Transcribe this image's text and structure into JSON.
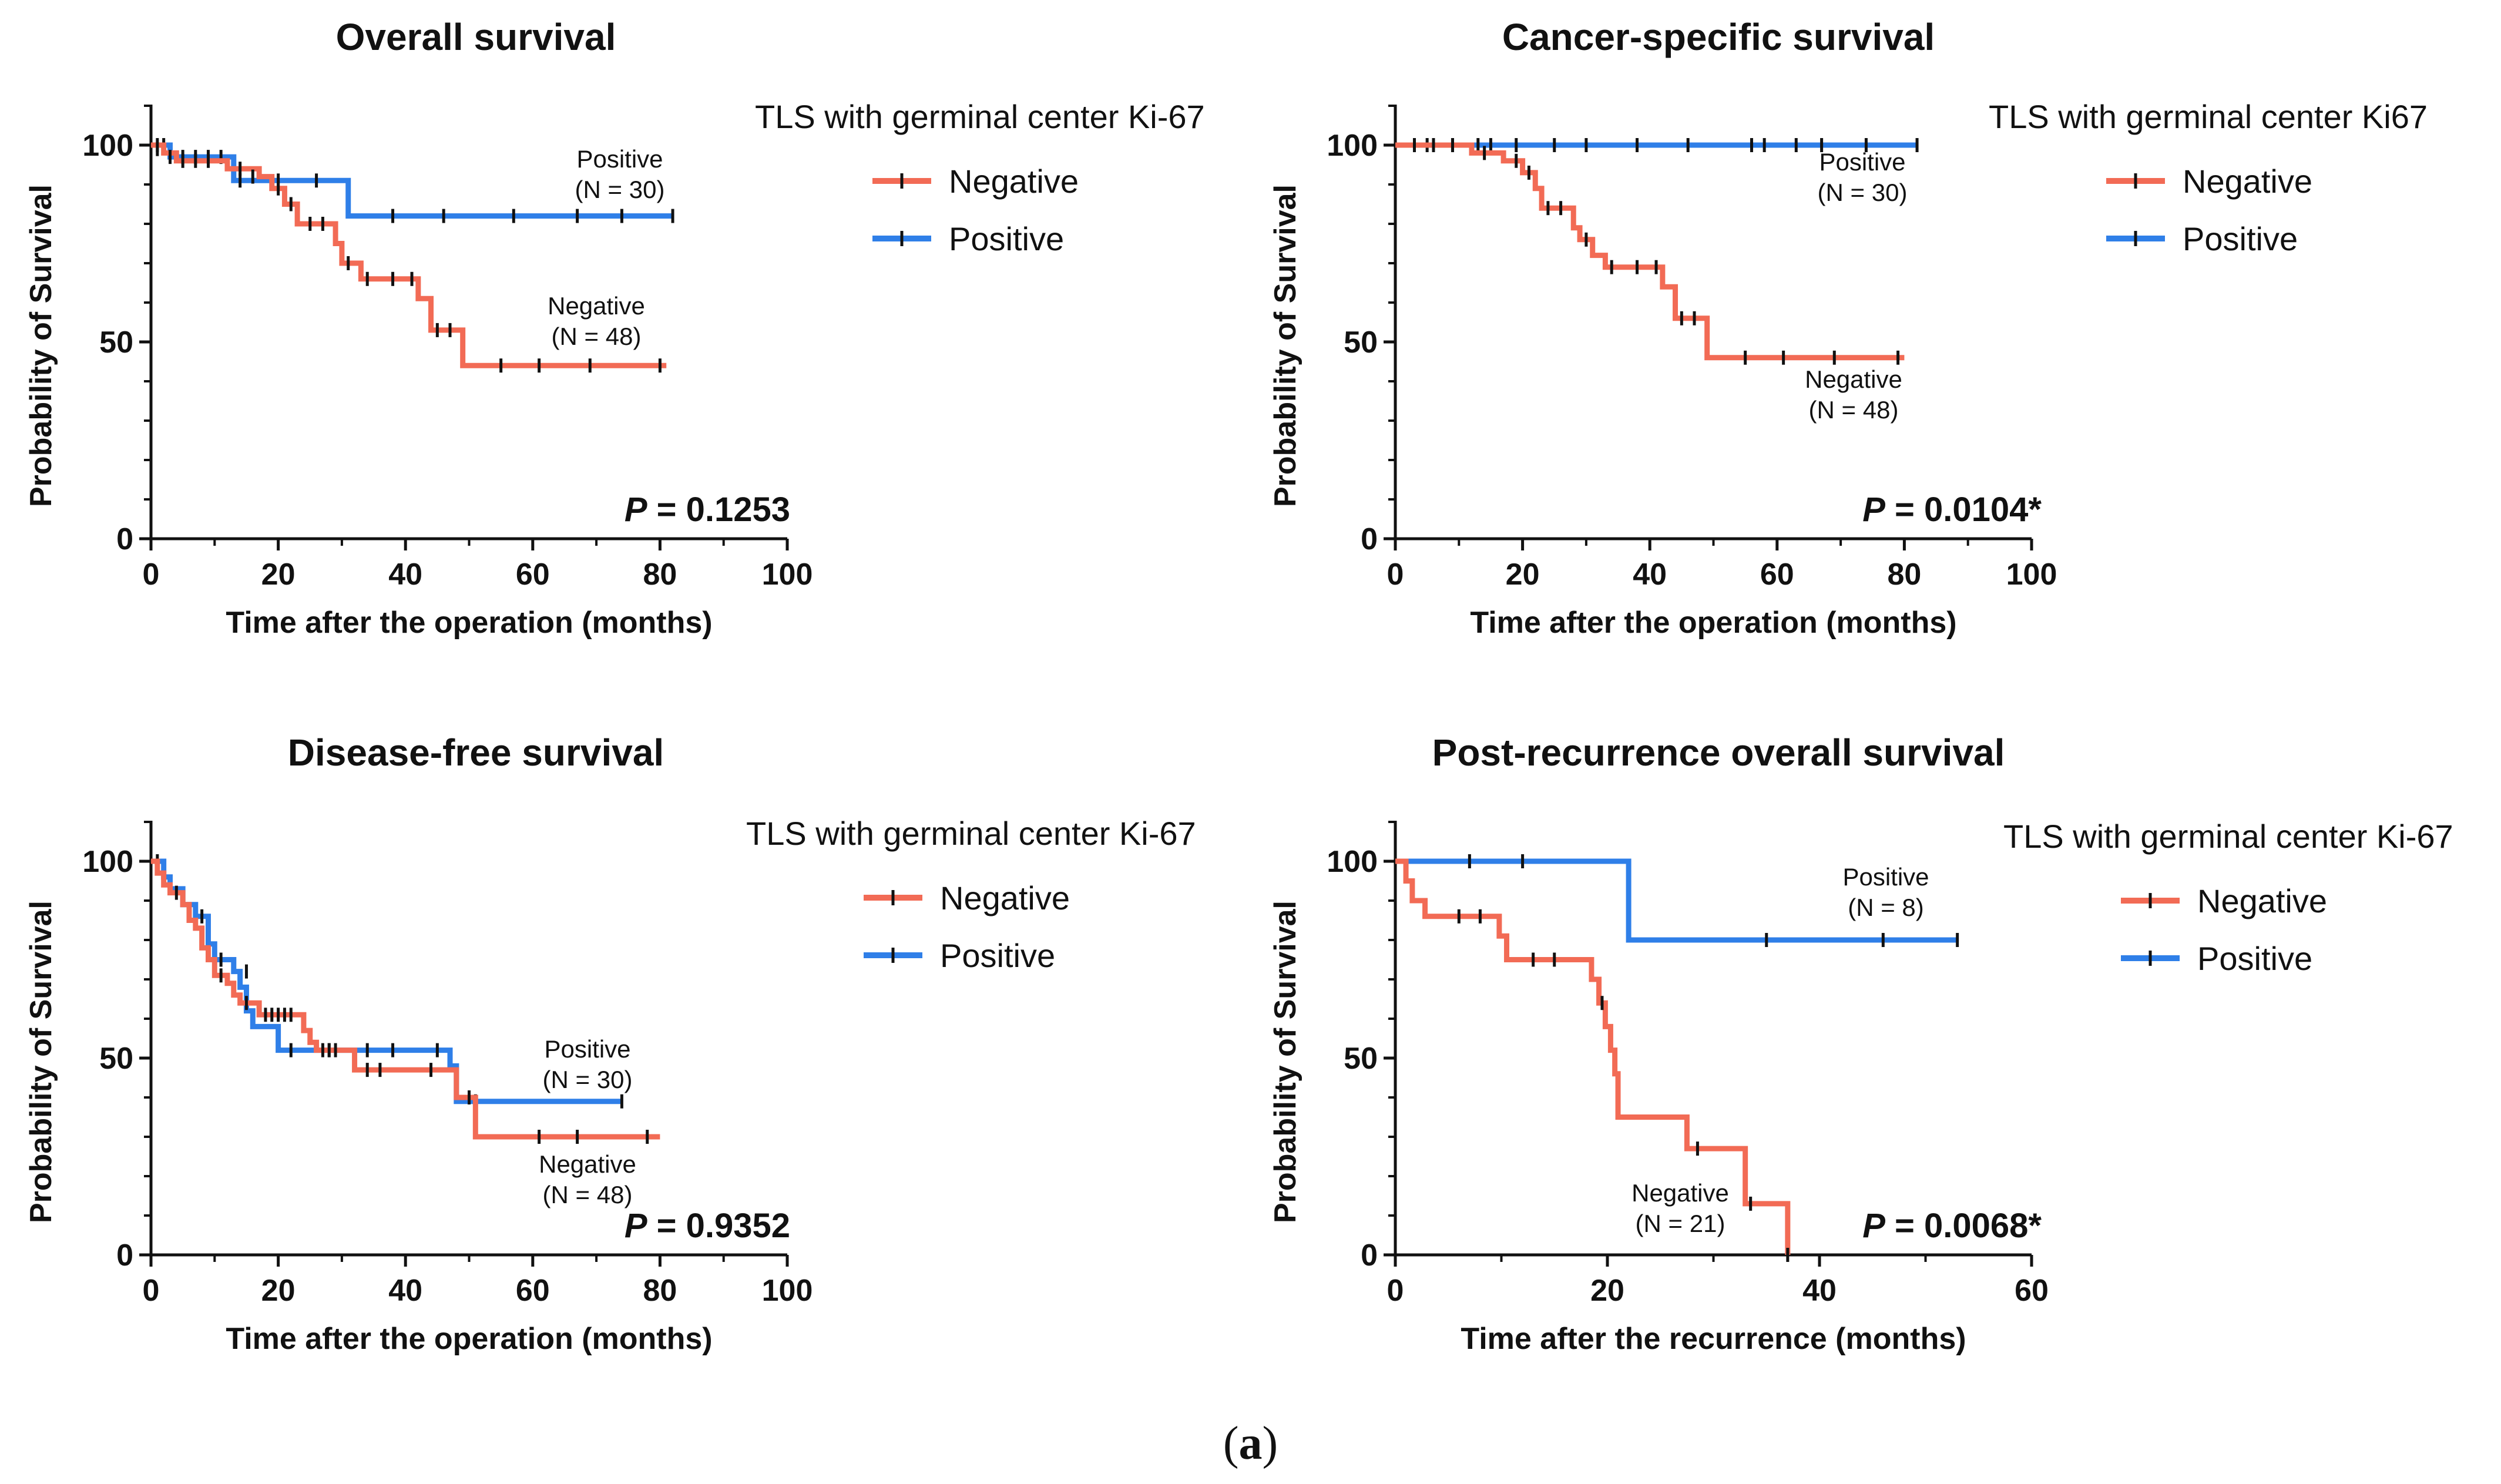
{
  "figure_label": {
    "open": "(",
    "letter": "a",
    "close": ")"
  },
  "colors": {
    "negative": "#f26b55",
    "positive": "#2f7fe8",
    "axis": "#111111",
    "tick_mark": "#111111"
  },
  "chart_data": [
    {
      "type": "line",
      "subtype": "kaplan-meier",
      "title": "Overall survival",
      "xlabel": "Time after the operation (months)",
      "ylabel": "Probability of Survival",
      "xlim": [
        0,
        100
      ],
      "ylim": [
        0,
        110
      ],
      "xticks": [
        0,
        20,
        40,
        60,
        80,
        100
      ],
      "yticks": [
        0,
        50,
        100
      ],
      "legend_title": "TLS with germinal center Ki-67",
      "legend": [
        "Negative",
        "Positive"
      ],
      "p_label": "P",
      "p_value": "= 0.1253",
      "series": [
        {
          "name": "Negative",
          "color": "#f26b55",
          "label_line1": "Negative",
          "label_line2": "(N = 48)",
          "steps": [
            [
              0,
              100
            ],
            [
              2,
              98
            ],
            [
              4,
              96
            ],
            [
              10,
              96
            ],
            [
              12,
              94
            ],
            [
              17,
              92
            ],
            [
              19,
              89
            ],
            [
              21,
              85
            ],
            [
              23,
              80
            ],
            [
              29,
              75
            ],
            [
              30,
              70
            ],
            [
              33,
              66
            ],
            [
              42,
              61
            ],
            [
              44,
              53
            ],
            [
              49,
              44
            ],
            [
              81,
              44
            ]
          ],
          "censored": [
            [
              1,
              99
            ],
            [
              3,
              97
            ],
            [
              5,
              96
            ],
            [
              7,
              96
            ],
            [
              9,
              96
            ],
            [
              14,
              94
            ],
            [
              16,
              92
            ],
            [
              20,
              89
            ],
            [
              22,
              85
            ],
            [
              25,
              80
            ],
            [
              27,
              80
            ],
            [
              31,
              70
            ],
            [
              34,
              66
            ],
            [
              38,
              66
            ],
            [
              41,
              66
            ],
            [
              45,
              53
            ],
            [
              47,
              53
            ],
            [
              55,
              44
            ],
            [
              61,
              44
            ],
            [
              69,
              44
            ],
            [
              80,
              44
            ]
          ]
        },
        {
          "name": "Positive",
          "color": "#2f7fe8",
          "label_line1": "Positive",
          "label_line2": "(N = 30)",
          "steps": [
            [
              0,
              100
            ],
            [
              3,
              97
            ],
            [
              13,
              91
            ],
            [
              31,
              82
            ],
            [
              82,
              82
            ]
          ],
          "censored": [
            [
              1,
              100
            ],
            [
              2,
              100
            ],
            [
              5,
              97
            ],
            [
              7,
              97
            ],
            [
              9,
              97
            ],
            [
              11,
              97
            ],
            [
              14,
              91
            ],
            [
              20,
              91
            ],
            [
              26,
              91
            ],
            [
              38,
              82
            ],
            [
              46,
              82
            ],
            [
              57,
              82
            ],
            [
              67,
              82
            ],
            [
              74,
              82
            ],
            [
              82,
              82
            ]
          ]
        }
      ]
    },
    {
      "type": "line",
      "subtype": "kaplan-meier",
      "title": "Cancer-specific survival",
      "xlabel": "Time after the operation (months)",
      "ylabel": "Probability of Survival",
      "xlim": [
        0,
        100
      ],
      "ylim": [
        0,
        110
      ],
      "xticks": [
        0,
        20,
        40,
        60,
        80,
        100
      ],
      "yticks": [
        0,
        50,
        100
      ],
      "legend_title": "TLS with germinal center Ki67",
      "legend": [
        "Negative",
        "Positive"
      ],
      "p_label": "P",
      "p_value": "= 0.0104*",
      "series": [
        {
          "name": "Negative",
          "color": "#f26b55",
          "label_line1": "Negative",
          "label_line2": "(N = 48)",
          "steps": [
            [
              0,
              100
            ],
            [
              12,
              98
            ],
            [
              17,
              96
            ],
            [
              20,
              93
            ],
            [
              22,
              89
            ],
            [
              23,
              84
            ],
            [
              28,
              79
            ],
            [
              29,
              76
            ],
            [
              31,
              72
            ],
            [
              33,
              69
            ],
            [
              42,
              64
            ],
            [
              44,
              56
            ],
            [
              49,
              46
            ],
            [
              80,
              46
            ]
          ],
          "censored": [
            [
              3,
              100
            ],
            [
              6,
              100
            ],
            [
              9,
              100
            ],
            [
              14,
              98
            ],
            [
              19,
              96
            ],
            [
              21,
              93
            ],
            [
              24,
              84
            ],
            [
              26,
              84
            ],
            [
              30,
              76
            ],
            [
              34,
              69
            ],
            [
              38,
              69
            ],
            [
              41,
              69
            ],
            [
              45,
              56
            ],
            [
              47,
              56
            ],
            [
              55,
              46
            ],
            [
              61,
              46
            ],
            [
              69,
              46
            ],
            [
              79,
              46
            ]
          ]
        },
        {
          "name": "Positive",
          "color": "#2f7fe8",
          "label_line1": "Positive",
          "label_line2": "(N = 30)",
          "steps": [
            [
              0,
              100
            ],
            [
              82,
              100
            ]
          ],
          "censored": [
            [
              5,
              100
            ],
            [
              9,
              100
            ],
            [
              13,
              100
            ],
            [
              15,
              100
            ],
            [
              19,
              100
            ],
            [
              25,
              100
            ],
            [
              30,
              100
            ],
            [
              38,
              100
            ],
            [
              46,
              100
            ],
            [
              56,
              100
            ],
            [
              58,
              100
            ],
            [
              63,
              100
            ],
            [
              67,
              100
            ],
            [
              74,
              100
            ],
            [
              82,
              100
            ]
          ]
        }
      ]
    },
    {
      "type": "line",
      "subtype": "kaplan-meier",
      "title": "Disease-free survival",
      "xlabel": "Time after the operation (months)",
      "ylabel": "Probability of Survival",
      "xlim": [
        0,
        100
      ],
      "ylim": [
        0,
        110
      ],
      "xticks": [
        0,
        20,
        40,
        60,
        80,
        100
      ],
      "yticks": [
        0,
        50,
        100
      ],
      "legend_title": "TLS with germinal center Ki-67",
      "legend": [
        "Negative",
        "Positive"
      ],
      "p_label": "P",
      "p_value": "= 0.9352",
      "series": [
        {
          "name": "Negative",
          "color": "#f26b55",
          "label_line1": "Negative",
          "label_line2": "(N = 48)",
          "steps": [
            [
              0,
              100
            ],
            [
              1,
              97
            ],
            [
              2,
              94
            ],
            [
              3,
              92
            ],
            [
              5,
              89
            ],
            [
              6,
              85
            ],
            [
              7,
              83
            ],
            [
              8,
              78
            ],
            [
              9,
              75
            ],
            [
              10,
              71
            ],
            [
              12,
              69
            ],
            [
              13,
              66
            ],
            [
              14,
              64
            ],
            [
              16,
              64
            ],
            [
              17,
              61
            ],
            [
              24,
              57
            ],
            [
              25,
              54
            ],
            [
              26,
              52
            ],
            [
              32,
              47
            ],
            [
              47,
              47
            ],
            [
              48,
              40
            ],
            [
              51,
              30
            ],
            [
              80,
              30
            ]
          ],
          "censored": [
            [
              4,
              92
            ],
            [
              11,
              71
            ],
            [
              15,
              64
            ],
            [
              18,
              61
            ],
            [
              19,
              61
            ],
            [
              20,
              61
            ],
            [
              21,
              61
            ],
            [
              22,
              61
            ],
            [
              27,
              52
            ],
            [
              28,
              52
            ],
            [
              29,
              52
            ],
            [
              34,
              47
            ],
            [
              36,
              47
            ],
            [
              44,
              47
            ],
            [
              50,
              40
            ],
            [
              61,
              30
            ],
            [
              67,
              30
            ],
            [
              78,
              30
            ]
          ]
        },
        {
          "name": "Positive",
          "color": "#2f7fe8",
          "label_line1": "Positive",
          "label_line2": "(N = 30)",
          "steps": [
            [
              0,
              100
            ],
            [
              2,
              96
            ],
            [
              3,
              93
            ],
            [
              5,
              89
            ],
            [
              7,
              86
            ],
            [
              9,
              79
            ],
            [
              10,
              75
            ],
            [
              13,
              72
            ],
            [
              14,
              68
            ],
            [
              15,
              62
            ],
            [
              16,
              58
            ],
            [
              20,
              52
            ],
            [
              47,
              48
            ],
            [
              48,
              39
            ],
            [
              74,
              39
            ]
          ],
          "censored": [
            [
              1,
              100
            ],
            [
              8,
              86
            ],
            [
              11,
              75
            ],
            [
              15,
              72
            ],
            [
              22,
              52
            ],
            [
              28,
              52
            ],
            [
              34,
              52
            ],
            [
              38,
              52
            ],
            [
              45,
              52
            ],
            [
              51,
              39
            ],
            [
              74,
              39
            ]
          ]
        }
      ]
    },
    {
      "type": "line",
      "subtype": "kaplan-meier",
      "title": "Post-recurrence overall survival",
      "xlabel": "Time after the recurrence (months)",
      "ylabel": "Probability of Survival",
      "xlim": [
        0,
        60
      ],
      "ylim": [
        0,
        110
      ],
      "xticks": [
        0,
        20,
        40,
        60
      ],
      "yticks": [
        0,
        50,
        100
      ],
      "legend_title": "TLS with germinal center Ki-67",
      "legend": [
        "Negative",
        "Positive"
      ],
      "p_label": "P",
      "p_value": "= 0.0068*",
      "series": [
        {
          "name": "Negative",
          "color": "#f26b55",
          "label_line1": "Negative",
          "label_line2": "(N = 21)",
          "steps": [
            [
              0,
              100
            ],
            [
              1,
              95
            ],
            [
              1.6,
              90
            ],
            [
              2.8,
              86
            ],
            [
              9.8,
              81
            ],
            [
              10.5,
              75
            ],
            [
              18.5,
              70
            ],
            [
              19.2,
              64
            ],
            [
              19.8,
              58
            ],
            [
              20.3,
              52
            ],
            [
              20.7,
              46
            ],
            [
              21,
              35
            ],
            [
              27.5,
              27
            ],
            [
              33,
              13
            ],
            [
              37,
              0
            ]
          ],
          "censored": [
            [
              6,
              86
            ],
            [
              8,
              86
            ],
            [
              13,
              75
            ],
            [
              15,
              75
            ],
            [
              19.5,
              64
            ],
            [
              28.5,
              27
            ],
            [
              33.5,
              13
            ],
            [
              37,
              0
            ]
          ]
        },
        {
          "name": "Positive",
          "color": "#2f7fe8",
          "label_line1": "Positive",
          "label_line2": "(N = 8)",
          "steps": [
            [
              0,
              100
            ],
            [
              22,
              100
            ],
            [
              22,
              80
            ],
            [
              53,
              80
            ]
          ],
          "censored": [
            [
              7,
              100
            ],
            [
              12,
              100
            ],
            [
              35,
              80
            ],
            [
              46,
              80
            ],
            [
              53,
              80
            ]
          ]
        }
      ]
    }
  ]
}
